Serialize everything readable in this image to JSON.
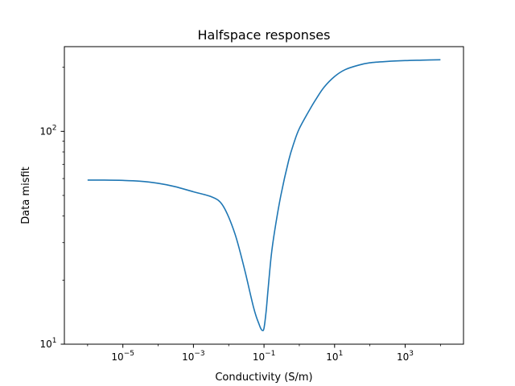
{
  "chart_data": {
    "type": "line",
    "title": "Halfspace responses",
    "xlabel": "Conductivity (S/m)",
    "ylabel": "Data misfit",
    "xscale": "log",
    "yscale": "log",
    "xlim": [
      2.2e-07,
      45000.0
    ],
    "ylim": [
      10,
      250
    ],
    "x_ticks": [
      {
        "base": "10",
        "exp": "−5",
        "value": 1e-05
      },
      {
        "base": "10",
        "exp": "−3",
        "value": 0.001
      },
      {
        "base": "10",
        "exp": "−1",
        "value": 0.1
      },
      {
        "base": "10",
        "exp": "1",
        "value": 10
      },
      {
        "base": "10",
        "exp": "3",
        "value": 1000
      }
    ],
    "y_ticks": [
      {
        "base": "10",
        "exp": "1",
        "value": 10
      },
      {
        "base": "10",
        "exp": "2",
        "value": 100
      }
    ],
    "grid": false,
    "line_color": "#1f77b4",
    "series": [
      {
        "x": [
          1e-06,
          3e-06,
          1e-05,
          3e-05,
          0.0001,
          0.0003,
          0.001,
          0.002,
          0.003,
          0.005,
          0.007,
          0.01,
          0.015,
          0.02,
          0.03,
          0.04,
          0.05,
          0.06,
          0.07,
          0.08,
          0.09,
          0.1,
          0.115,
          0.13,
          0.16,
          0.2,
          0.3,
          0.5,
          0.7,
          1,
          2,
          3,
          5,
          10,
          20,
          50,
          100,
          300,
          1000,
          3000,
          10000
        ],
        "y": [
          59,
          59,
          58.8,
          58.3,
          57,
          55,
          52,
          50.5,
          49.5,
          47.5,
          44.5,
          39.5,
          33,
          28,
          21.5,
          17.5,
          15,
          13.5,
          12.6,
          11.9,
          11.6,
          11.9,
          14.3,
          18,
          26,
          34,
          50,
          73,
          88,
          103,
          127,
          142,
          161,
          181,
          195,
          205,
          210,
          213,
          215,
          216,
          217
        ]
      }
    ]
  }
}
